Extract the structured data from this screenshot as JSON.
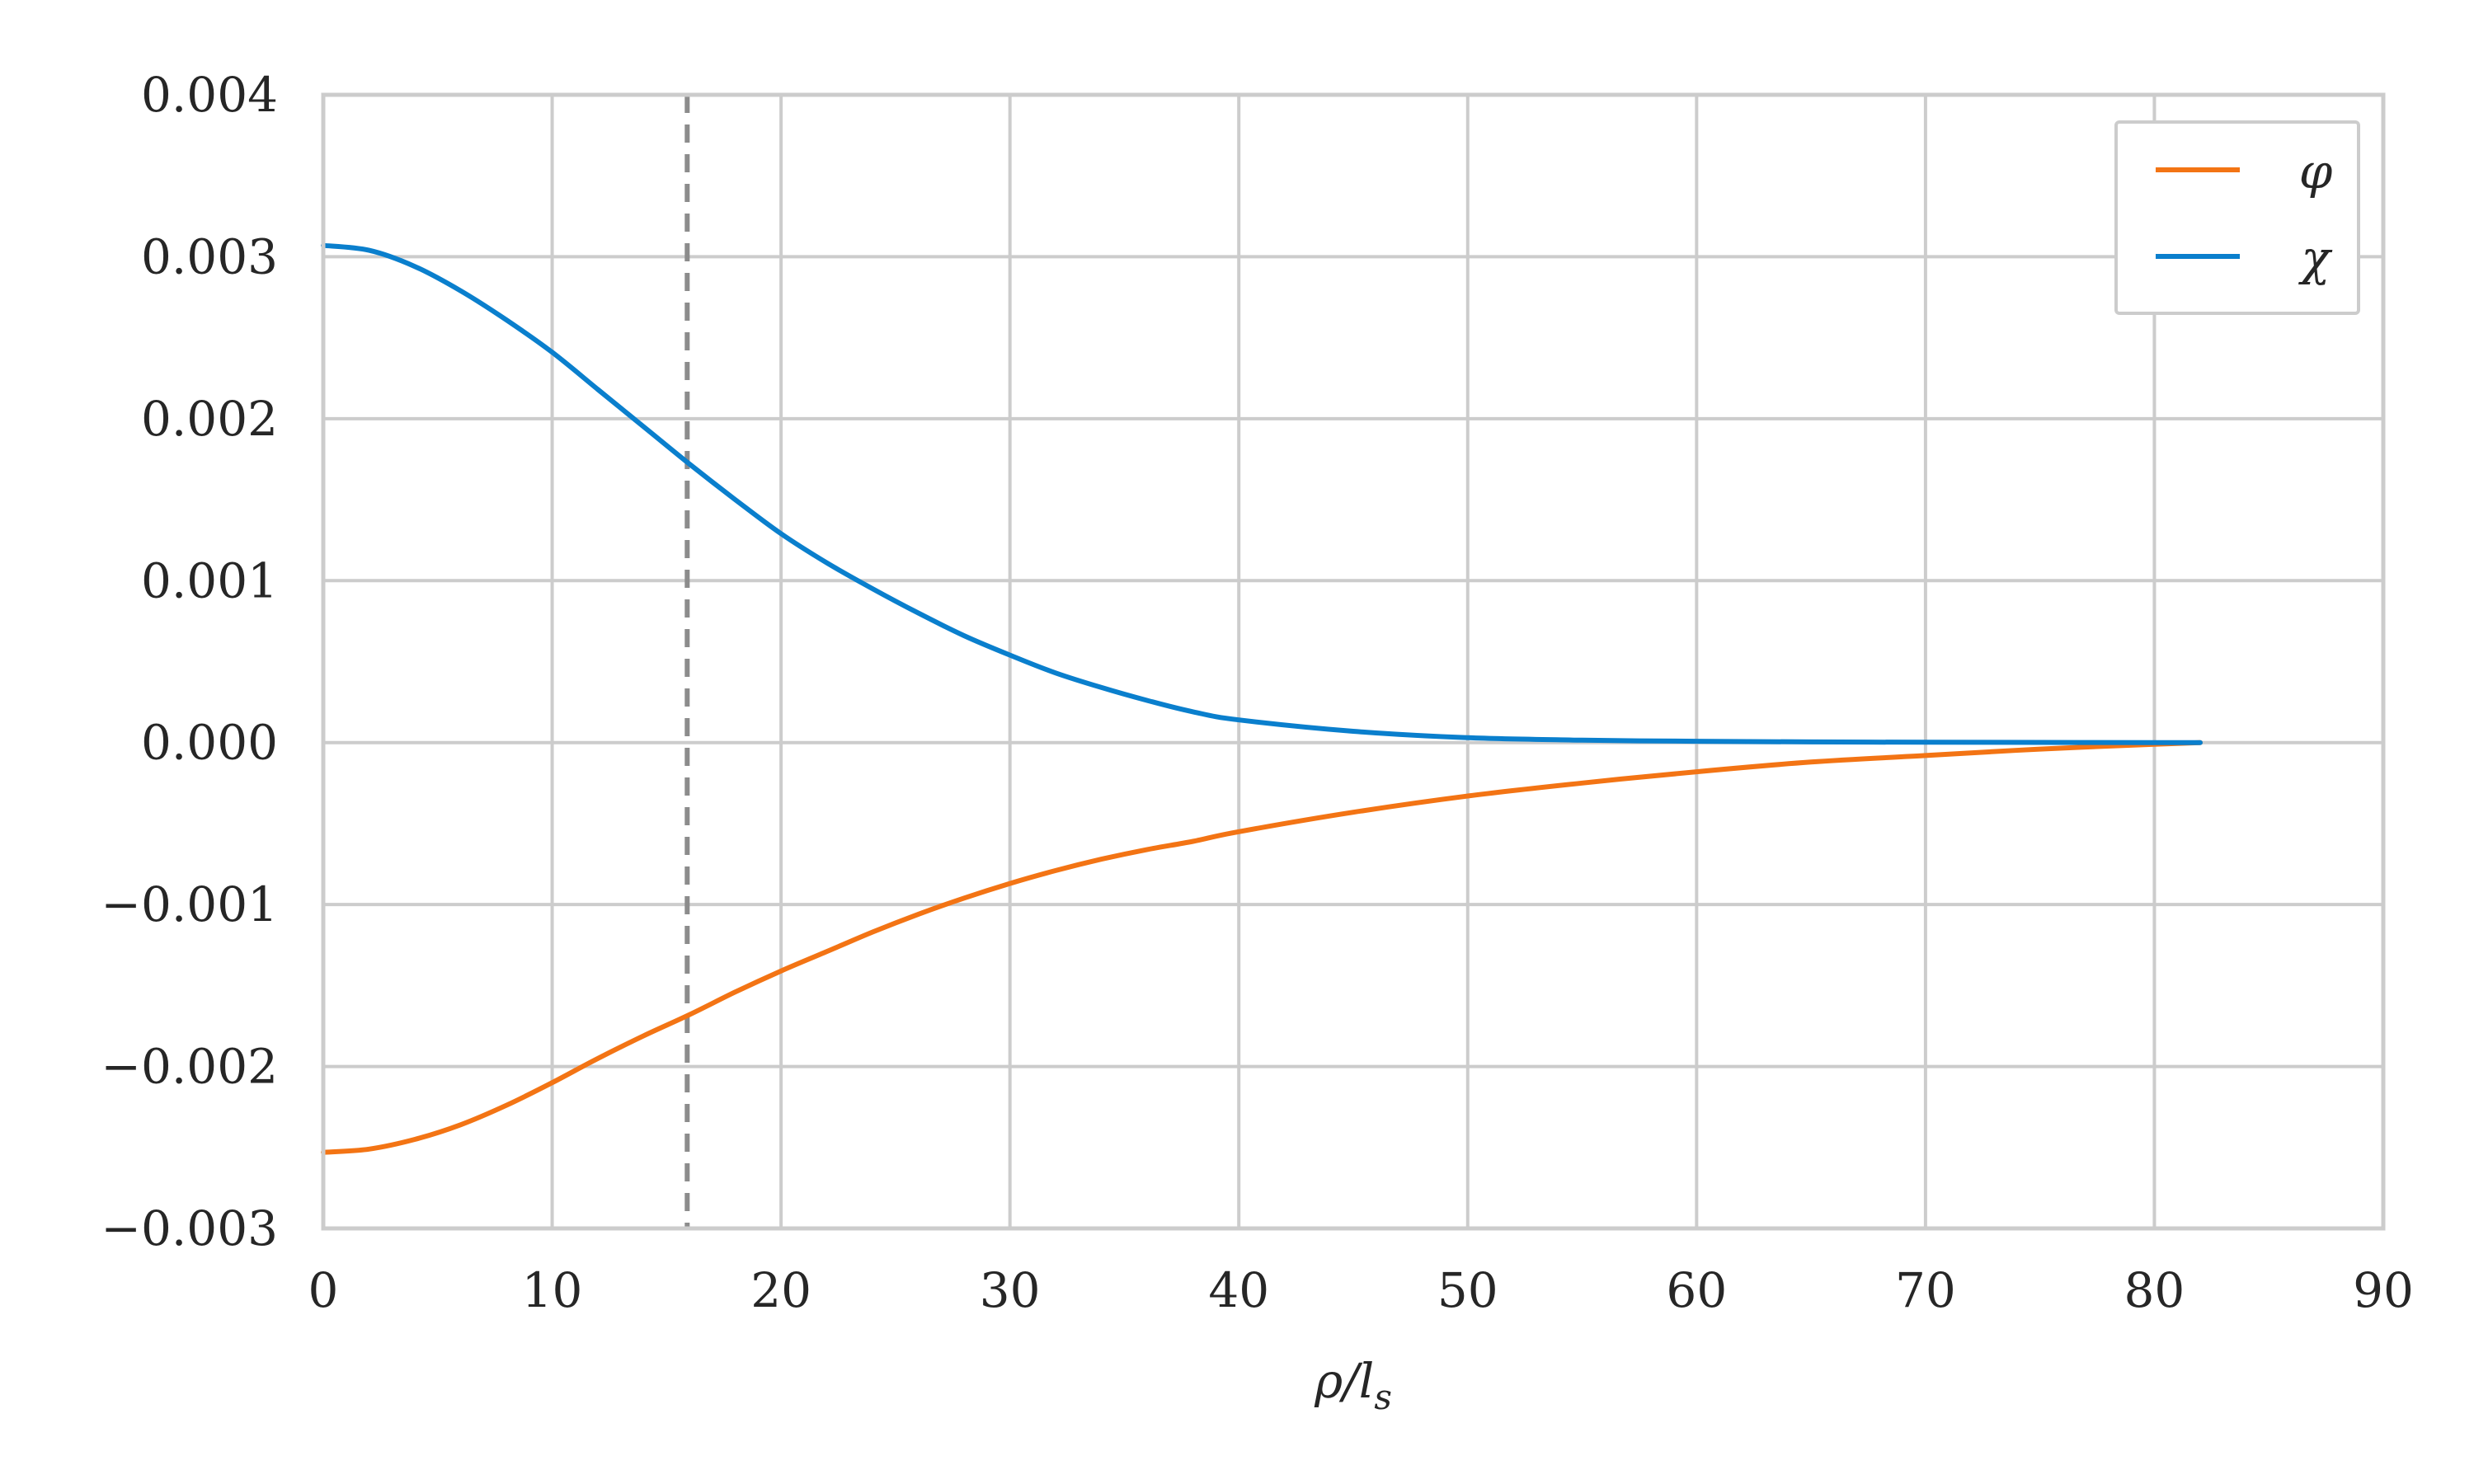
{
  "chart_data": {
    "type": "line",
    "title": "",
    "xlabel": "ρ/l_s",
    "xlabel_parts": {
      "main": "ρ/l",
      "sub": "s"
    },
    "ylabel": "",
    "xlim": [
      0,
      90
    ],
    "ylim": [
      -0.003,
      0.004
    ],
    "xticks": [
      0,
      10,
      20,
      30,
      40,
      50,
      60,
      70,
      80,
      90
    ],
    "xtick_labels": [
      "0",
      "10",
      "20",
      "30",
      "40",
      "50",
      "60",
      "70",
      "80",
      "90"
    ],
    "yticks": [
      -0.003,
      -0.002,
      -0.001,
      0.0,
      0.001,
      0.002,
      0.003,
      0.004
    ],
    "ytick_labels": [
      "−0.003",
      "−0.002",
      "−0.001",
      "0.000",
      "0.001",
      "0.002",
      "0.003",
      "0.004"
    ],
    "grid": true,
    "legend_position": "top-right",
    "vline": {
      "x": 15.9,
      "style": "dashed",
      "color": "#8c8c8c"
    },
    "series": [
      {
        "name": "φ",
        "color": "#f37414",
        "x": [
          0,
          2,
          4,
          6,
          8,
          10,
          12,
          14,
          16,
          18,
          20,
          22,
          24,
          26,
          28,
          30,
          32,
          34,
          36,
          38,
          40,
          45,
          50,
          55,
          60,
          65,
          70,
          75,
          80,
          82
        ],
        "y": [
          -0.00253,
          -0.00251,
          -0.00245,
          -0.00236,
          -0.00224,
          -0.0021,
          -0.00195,
          -0.00181,
          -0.00168,
          -0.00154,
          -0.00141,
          -0.00129,
          -0.00117,
          -0.00106,
          -0.00096,
          -0.00087,
          -0.00079,
          -0.00072,
          -0.00066,
          -0.00061,
          -0.00055,
          -0.00043,
          -0.00033,
          -0.00025,
          -0.00018,
          -0.00012,
          -8e-05,
          -4e-05,
          -1e-05,
          0.0
        ]
      },
      {
        "name": "χ",
        "color": "#0a7fcd",
        "x": [
          0,
          2,
          4,
          6,
          8,
          10,
          12,
          14,
          16,
          18,
          20,
          22,
          24,
          26,
          28,
          30,
          32,
          34,
          36,
          38,
          40,
          45,
          50,
          55,
          60,
          65,
          70,
          75,
          80,
          82
        ],
        "y": [
          0.00307,
          0.00304,
          0.00294,
          0.00279,
          0.00261,
          0.00241,
          0.00218,
          0.00195,
          0.00172,
          0.0015,
          0.00129,
          0.00111,
          0.00095,
          0.0008,
          0.00066,
          0.00054,
          0.00043,
          0.00034,
          0.00026,
          0.00019,
          0.00014,
          7e-05,
          3e-05,
          1.5e-05,
          8e-06,
          4e-06,
          2e-06,
          1e-06,
          0.0,
          0.0
        ]
      }
    ]
  }
}
